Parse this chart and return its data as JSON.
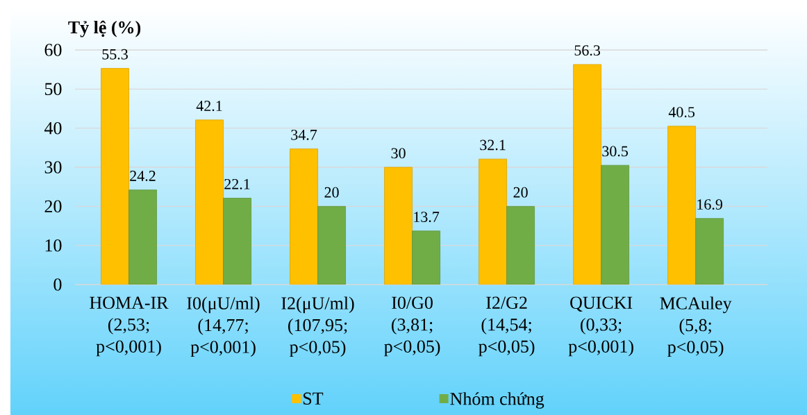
{
  "chart_data": {
    "type": "bar",
    "ylabel": "Tỷ lệ (%)",
    "categories": [
      "HOMA-IR (2,53; p<0,001)",
      "I0(μU/ml) (14,77; p<0,001)",
      "I2(μU/ml) (107,95; p<0,05)",
      "I0/G0 (3,81; p<0,05)",
      "I2/G2 (14,54; p<0,05)",
      "QUICKI (0,33; p<0,001)",
      "MCAuley (5,8; p<0,05)"
    ],
    "series": [
      {
        "name": "ST",
        "color": "#ffc000",
        "values": [
          55.3,
          42.1,
          34.7,
          30,
          32.1,
          56.3,
          40.5
        ]
      },
      {
        "name": "Nhóm chứng",
        "color": "#70ad47",
        "values": [
          24.2,
          22.1,
          20,
          13.7,
          20,
          30.5,
          16.9
        ]
      }
    ],
    "ylim": [
      0,
      60
    ],
    "yticks": [
      0,
      10,
      20,
      30,
      40,
      50,
      60
    ],
    "grid": "y",
    "legend": "bottom",
    "data_labels": true
  }
}
